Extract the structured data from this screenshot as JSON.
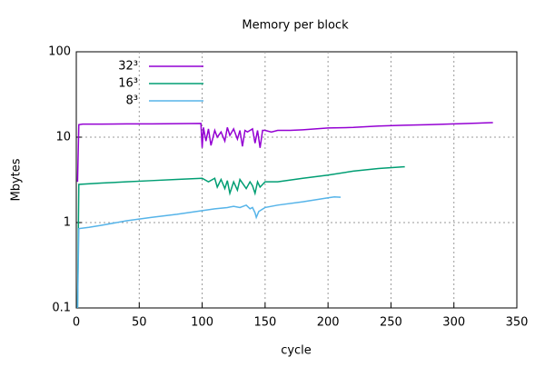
{
  "chart_data": {
    "type": "line",
    "title": "Memory per block",
    "x_label": "cycle",
    "y_label": "Mbytes",
    "xlim": [
      0,
      350
    ],
    "xticks": [
      0,
      50,
      100,
      150,
      200,
      250,
      300,
      350
    ],
    "ylim": [
      0.1,
      100
    ],
    "yticks": [
      0.1,
      1,
      10,
      100
    ],
    "y_scale": "log",
    "grid": true,
    "legend": "top-left",
    "series": [
      {
        "name": "32³",
        "color": "#9400d3",
        "x": [
          1,
          2,
          5,
          20,
          40,
          60,
          80,
          99,
          100,
          101,
          103,
          105,
          107,
          110,
          112,
          115,
          118,
          120,
          122,
          125,
          128,
          130,
          132,
          134,
          136,
          140,
          142,
          144,
          146,
          148,
          150,
          155,
          160,
          170,
          180,
          200,
          220,
          240,
          260,
          280,
          300,
          320,
          330,
          331
        ],
        "values": [
          3,
          14,
          14.2,
          14.2,
          14.3,
          14.3,
          14.4,
          14.5,
          7.5,
          13,
          9,
          12.5,
          8,
          12,
          10,
          11.5,
          9,
          13,
          10.5,
          12.5,
          9.5,
          12,
          7.8,
          12,
          11.5,
          12.5,
          8.5,
          12,
          7.5,
          12,
          12,
          11.5,
          12,
          12,
          12.2,
          12.8,
          13,
          13.5,
          13.8,
          14,
          14.3,
          14.6,
          14.8,
          14.8
        ]
      },
      {
        "name": "16³",
        "color": "#009e73",
        "x": [
          1,
          2,
          20,
          40,
          60,
          80,
          100,
          105,
          110,
          112,
          115,
          118,
          120,
          122,
          125,
          128,
          130,
          132,
          135,
          138,
          140,
          142,
          144,
          146,
          150,
          160,
          180,
          200,
          220,
          240,
          260,
          261
        ],
        "values": [
          0.1,
          2.8,
          2.9,
          3.0,
          3.1,
          3.2,
          3.3,
          3.0,
          3.3,
          2.6,
          3.2,
          2.5,
          3.1,
          2.2,
          3.0,
          2.4,
          3.2,
          2.9,
          2.5,
          3.0,
          2.7,
          2.2,
          3.0,
          2.6,
          3.0,
          3.0,
          3.3,
          3.6,
          4.0,
          4.3,
          4.5,
          4.5
        ]
      },
      {
        "name": "8³",
        "color": "#56b4e9",
        "x": [
          1,
          2,
          10,
          20,
          40,
          60,
          80,
          100,
          110,
          120,
          125,
          130,
          135,
          138,
          140,
          142,
          143,
          145,
          150,
          160,
          180,
          200,
          205,
          210
        ],
        "values": [
          0.1,
          0.85,
          0.88,
          0.93,
          1.05,
          1.15,
          1.25,
          1.38,
          1.45,
          1.5,
          1.55,
          1.5,
          1.6,
          1.45,
          1.5,
          1.3,
          1.15,
          1.35,
          1.5,
          1.6,
          1.75,
          1.95,
          2.0,
          1.98
        ]
      }
    ]
  }
}
